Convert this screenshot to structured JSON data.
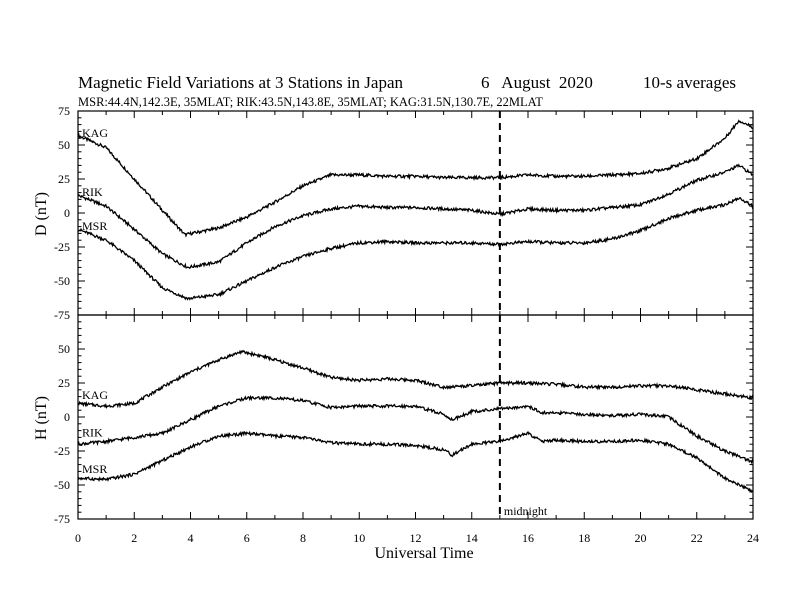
{
  "header": {
    "title": "Magnetic Field Variations at 3 Stations in Japan",
    "date": "6   August  2020",
    "averaging": "10-s averages",
    "stations_line": "MSR:44.4N,142.3E, 35MLAT;  RIK:43.5N,143.8E, 35MLAT;  KAG:31.5N,130.7E, 22MLAT"
  },
  "chart_data": [
    {
      "type": "line",
      "panel": "D",
      "ylabel": "D (nT)",
      "xlim": [
        0,
        24
      ],
      "ylim": [
        -75,
        75
      ],
      "yticks": [
        75,
        50,
        25,
        0,
        -25,
        -50,
        -75
      ],
      "series": [
        {
          "name": "KAG",
          "x": [
            0,
            1,
            2,
            3,
            3.8,
            5,
            6,
            7,
            8,
            9,
            10,
            11,
            12,
            13,
            14,
            15,
            16,
            17,
            18,
            19,
            20,
            21,
            22,
            23,
            23.5,
            24
          ],
          "values": [
            57,
            48,
            25,
            2,
            -16,
            -11,
            -3,
            8,
            20,
            28,
            28,
            27,
            27,
            26,
            26,
            26,
            28,
            27,
            27,
            28,
            29,
            33,
            40,
            55,
            68,
            63
          ]
        },
        {
          "name": "RIK",
          "x": [
            0,
            1,
            2,
            3,
            3.9,
            5,
            6,
            7,
            8,
            9,
            10,
            11,
            12,
            13,
            14,
            15,
            16,
            17,
            18,
            19,
            20,
            21,
            22,
            23,
            23.5,
            24
          ],
          "values": [
            13,
            5,
            -12,
            -30,
            -40,
            -36,
            -22,
            -10,
            -2,
            3,
            5,
            4,
            4,
            3,
            2,
            -1,
            3,
            2,
            2,
            4,
            6,
            14,
            24,
            30,
            35,
            28
          ]
        },
        {
          "name": "MSR",
          "x": [
            0,
            1,
            2,
            3,
            3.9,
            5,
            6,
            7,
            8,
            9,
            10,
            11,
            12,
            13,
            14,
            15,
            16,
            17,
            18,
            19,
            20,
            21,
            22,
            23,
            23.5,
            24
          ],
          "values": [
            -12,
            -20,
            -35,
            -55,
            -63,
            -60,
            -50,
            -40,
            -32,
            -26,
            -22,
            -21,
            -22,
            -22,
            -22,
            -23,
            -21,
            -22,
            -22,
            -19,
            -13,
            -4,
            2,
            6,
            11,
            5
          ]
        }
      ],
      "series_labels": [
        "KAG",
        "RIK",
        "MSR"
      ]
    },
    {
      "type": "line",
      "panel": "H",
      "ylabel": "H (nT)",
      "xlim": [
        0,
        24
      ],
      "ylim": [
        -75,
        75
      ],
      "yticks": [
        50,
        25,
        0,
        -25,
        -50,
        -75
      ],
      "xticks": [
        0,
        2,
        4,
        6,
        8,
        10,
        12,
        14,
        16,
        18,
        20,
        22,
        24
      ],
      "xlabel": "Universal Time",
      "series": [
        {
          "name": "KAG",
          "x": [
            0,
            1,
            2,
            3,
            4,
            5,
            5.8,
            6.5,
            7,
            8,
            9,
            10,
            11,
            12,
            13,
            14,
            15,
            16,
            17,
            18,
            19,
            20,
            21,
            22,
            23,
            24
          ],
          "values": [
            10,
            8,
            10,
            22,
            33,
            42,
            48,
            45,
            42,
            36,
            29,
            27,
            28,
            27,
            22,
            23,
            25,
            25,
            24,
            22,
            22,
            23,
            23,
            20,
            17,
            14
          ]
        },
        {
          "name": "RIK",
          "x": [
            0,
            1,
            2,
            3,
            4,
            5,
            6,
            7,
            8,
            9,
            10,
            11,
            12,
            13,
            13.3,
            14,
            15,
            16,
            16.5,
            17,
            18,
            19,
            20,
            21,
            22,
            23,
            24
          ],
          "values": [
            -20,
            -18,
            -15,
            -12,
            -2,
            8,
            14,
            14,
            12,
            7,
            8,
            8,
            8,
            2,
            -2,
            4,
            6,
            8,
            3,
            3,
            2,
            1,
            2,
            0,
            -14,
            -25,
            -33
          ]
        },
        {
          "name": "MSR",
          "x": [
            0,
            1,
            2,
            3,
            4,
            5,
            6,
            7,
            8,
            9,
            10,
            11,
            12,
            13,
            13.3,
            14,
            15,
            16,
            16.5,
            17,
            18,
            19,
            20,
            21,
            22,
            23,
            24
          ],
          "values": [
            -45,
            -46,
            -42,
            -32,
            -22,
            -14,
            -12,
            -14,
            -15,
            -19,
            -20,
            -20,
            -21,
            -24,
            -28,
            -20,
            -18,
            -12,
            -18,
            -17,
            -18,
            -18,
            -17,
            -20,
            -30,
            -45,
            -55
          ]
        }
      ],
      "series_labels": [
        "KAG",
        "RIK",
        "MSR"
      ],
      "annotation": {
        "x": 15,
        "text": "midnight"
      }
    }
  ]
}
